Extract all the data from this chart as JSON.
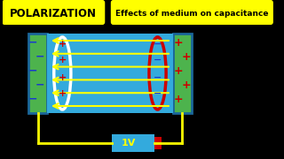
{
  "bg_color": "#000000",
  "title_text": "POLARIZATION",
  "title_bg": "#FFFF00",
  "title_color": "#000000",
  "subtitle_text": "Effects of medium on capacitance",
  "subtitle_bg": "#FFFF00",
  "subtitle_color": "#000000",
  "left_plate_color": "#4db34d",
  "right_plate_color": "#4db34d",
  "plate_border_color": "#1a6699",
  "dielectric_color": "#33aadd",
  "wire_color": "#FFFF00",
  "arrow_color": "#FFFF00",
  "neg_sign_color": "#1a3acc",
  "pos_sign_color": "#cc0000",
  "battery_color": "#33aadd",
  "battery_text": "1V",
  "battery_text_color": "#FFFF00",
  "left_ellipse_color": "#ffffff",
  "right_ellipse_color": "#cc0000",
  "battery_terminal_color": "#cc0000"
}
